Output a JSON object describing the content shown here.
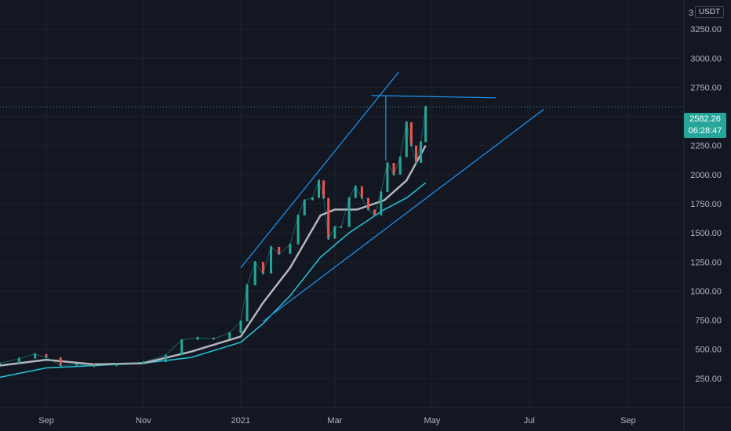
{
  "chart_data": {
    "type": "line",
    "symbol_quote": "USDT",
    "y_axis": {
      "ticks": [
        "250.00",
        "500.00",
        "750.00",
        "1000.00",
        "1250.00",
        "1500.00",
        "1750.00",
        "2000.00",
        "2250.00",
        "2500.00",
        "2750.00",
        "3000.00",
        "3250.00"
      ],
      "ylim": [
        0,
        3500
      ],
      "partial_top_label": "3"
    },
    "x_axis": {
      "ticks": [
        {
          "label": "Sep",
          "date": "2020-09-01"
        },
        {
          "label": "Nov",
          "date": "2020-11-01"
        },
        {
          "label": "2021",
          "date": "2021-01-01"
        },
        {
          "label": "Mar",
          "date": "2021-03-01"
        },
        {
          "label": "May",
          "date": "2021-05-01"
        },
        {
          "label": "Jul",
          "date": "2021-07-01"
        },
        {
          "label": "Sep",
          "date": "2021-09-01"
        }
      ],
      "range": [
        "2020-08-03",
        "2021-10-06"
      ]
    },
    "current_price": {
      "value": "2582.26",
      "countdown": "06:28:47"
    },
    "price_series": [
      {
        "date": "2020-08-03",
        "value": 380
      },
      {
        "date": "2020-08-15",
        "value": 420
      },
      {
        "date": "2020-08-25",
        "value": 460
      },
      {
        "date": "2020-09-01",
        "value": 430
      },
      {
        "date": "2020-09-10",
        "value": 360
      },
      {
        "date": "2020-09-20",
        "value": 370
      },
      {
        "date": "2020-10-01",
        "value": 355
      },
      {
        "date": "2020-10-15",
        "value": 370
      },
      {
        "date": "2020-11-01",
        "value": 390
      },
      {
        "date": "2020-11-15",
        "value": 450
      },
      {
        "date": "2020-11-25",
        "value": 580
      },
      {
        "date": "2020-12-05",
        "value": 600
      },
      {
        "date": "2020-12-15",
        "value": 590
      },
      {
        "date": "2020-12-25",
        "value": 640
      },
      {
        "date": "2021-01-01",
        "value": 740
      },
      {
        "date": "2021-01-05",
        "value": 1050
      },
      {
        "date": "2021-01-10",
        "value": 1250
      },
      {
        "date": "2021-01-15",
        "value": 1150
      },
      {
        "date": "2021-01-20",
        "value": 1380
      },
      {
        "date": "2021-01-25",
        "value": 1320
      },
      {
        "date": "2021-02-01",
        "value": 1400
      },
      {
        "date": "2021-02-06",
        "value": 1650
      },
      {
        "date": "2021-02-10",
        "value": 1780
      },
      {
        "date": "2021-02-15",
        "value": 1800
      },
      {
        "date": "2021-02-19",
        "value": 1950
      },
      {
        "date": "2021-02-22",
        "value": 1800
      },
      {
        "date": "2021-02-25",
        "value": 1450
      },
      {
        "date": "2021-03-01",
        "value": 1550
      },
      {
        "date": "2021-03-05",
        "value": 1550
      },
      {
        "date": "2021-03-10",
        "value": 1800
      },
      {
        "date": "2021-03-14",
        "value": 1900
      },
      {
        "date": "2021-03-18",
        "value": 1800
      },
      {
        "date": "2021-03-22",
        "value": 1700
      },
      {
        "date": "2021-03-26",
        "value": 1650
      },
      {
        "date": "2021-03-30",
        "value": 1850
      },
      {
        "date": "2021-04-03",
        "value": 2100
      },
      {
        "date": "2021-04-07",
        "value": 2000
      },
      {
        "date": "2021-04-11",
        "value": 2150
      },
      {
        "date": "2021-04-15",
        "value": 2450
      },
      {
        "date": "2021-04-18",
        "value": 2250
      },
      {
        "date": "2021-04-21",
        "value": 2100
      },
      {
        "date": "2021-04-24",
        "value": 2280
      },
      {
        "date": "2021-04-27",
        "value": 2582.26
      }
    ],
    "ma_fast": [
      {
        "date": "2020-08-03",
        "value": 360
      },
      {
        "date": "2020-09-01",
        "value": 410
      },
      {
        "date": "2020-10-01",
        "value": 370
      },
      {
        "date": "2020-11-01",
        "value": 380
      },
      {
        "date": "2020-12-01",
        "value": 480
      },
      {
        "date": "2021-01-01",
        "value": 610
      },
      {
        "date": "2021-01-15",
        "value": 900
      },
      {
        "date": "2021-02-01",
        "value": 1200
      },
      {
        "date": "2021-02-20",
        "value": 1650
      },
      {
        "date": "2021-03-01",
        "value": 1700
      },
      {
        "date": "2021-03-15",
        "value": 1700
      },
      {
        "date": "2021-04-01",
        "value": 1780
      },
      {
        "date": "2021-04-15",
        "value": 1950
      },
      {
        "date": "2021-04-27",
        "value": 2250
      }
    ],
    "ma_slow": [
      {
        "date": "2020-08-03",
        "value": 260
      },
      {
        "date": "2020-09-01",
        "value": 340
      },
      {
        "date": "2020-10-01",
        "value": 360
      },
      {
        "date": "2020-11-01",
        "value": 380
      },
      {
        "date": "2020-12-01",
        "value": 430
      },
      {
        "date": "2021-01-01",
        "value": 560
      },
      {
        "date": "2021-01-15",
        "value": 720
      },
      {
        "date": "2021-02-01",
        "value": 960
      },
      {
        "date": "2021-02-20",
        "value": 1290
      },
      {
        "date": "2021-03-10",
        "value": 1500
      },
      {
        "date": "2021-04-01",
        "value": 1700
      },
      {
        "date": "2021-04-15",
        "value": 1800
      },
      {
        "date": "2021-04-27",
        "value": 1930
      }
    ],
    "drawings": [
      {
        "kind": "upper-channel-line",
        "from": {
          "date": "2021-01-01",
          "value": 1200
        },
        "to": {
          "date": "2021-04-10",
          "value": 2880
        }
      },
      {
        "kind": "lower-trendline",
        "from": {
          "date": "2021-01-15",
          "value": 740
        },
        "to": {
          "date": "2021-07-10",
          "value": 2560
        }
      },
      {
        "kind": "top-horizontal",
        "from": {
          "date": "2021-03-24",
          "value": 2680
        },
        "to": {
          "date": "2021-06-10",
          "value": 2660
        }
      },
      {
        "kind": "vertical-marker",
        "from": {
          "date": "2021-04-02",
          "value": 2120
        },
        "to": {
          "date": "2021-04-02",
          "value": 2680
        }
      }
    ],
    "colors": {
      "background": "#131722",
      "grid": "#1e222d",
      "price_line": "#ffffff",
      "ma_fast": "#b2b5be",
      "ma_slow": "#26c6da",
      "drawing": "#2196f3",
      "up": "#26a69a",
      "down": "#ef5350",
      "price_tag": "#26a69a"
    },
    "grid": true
  }
}
